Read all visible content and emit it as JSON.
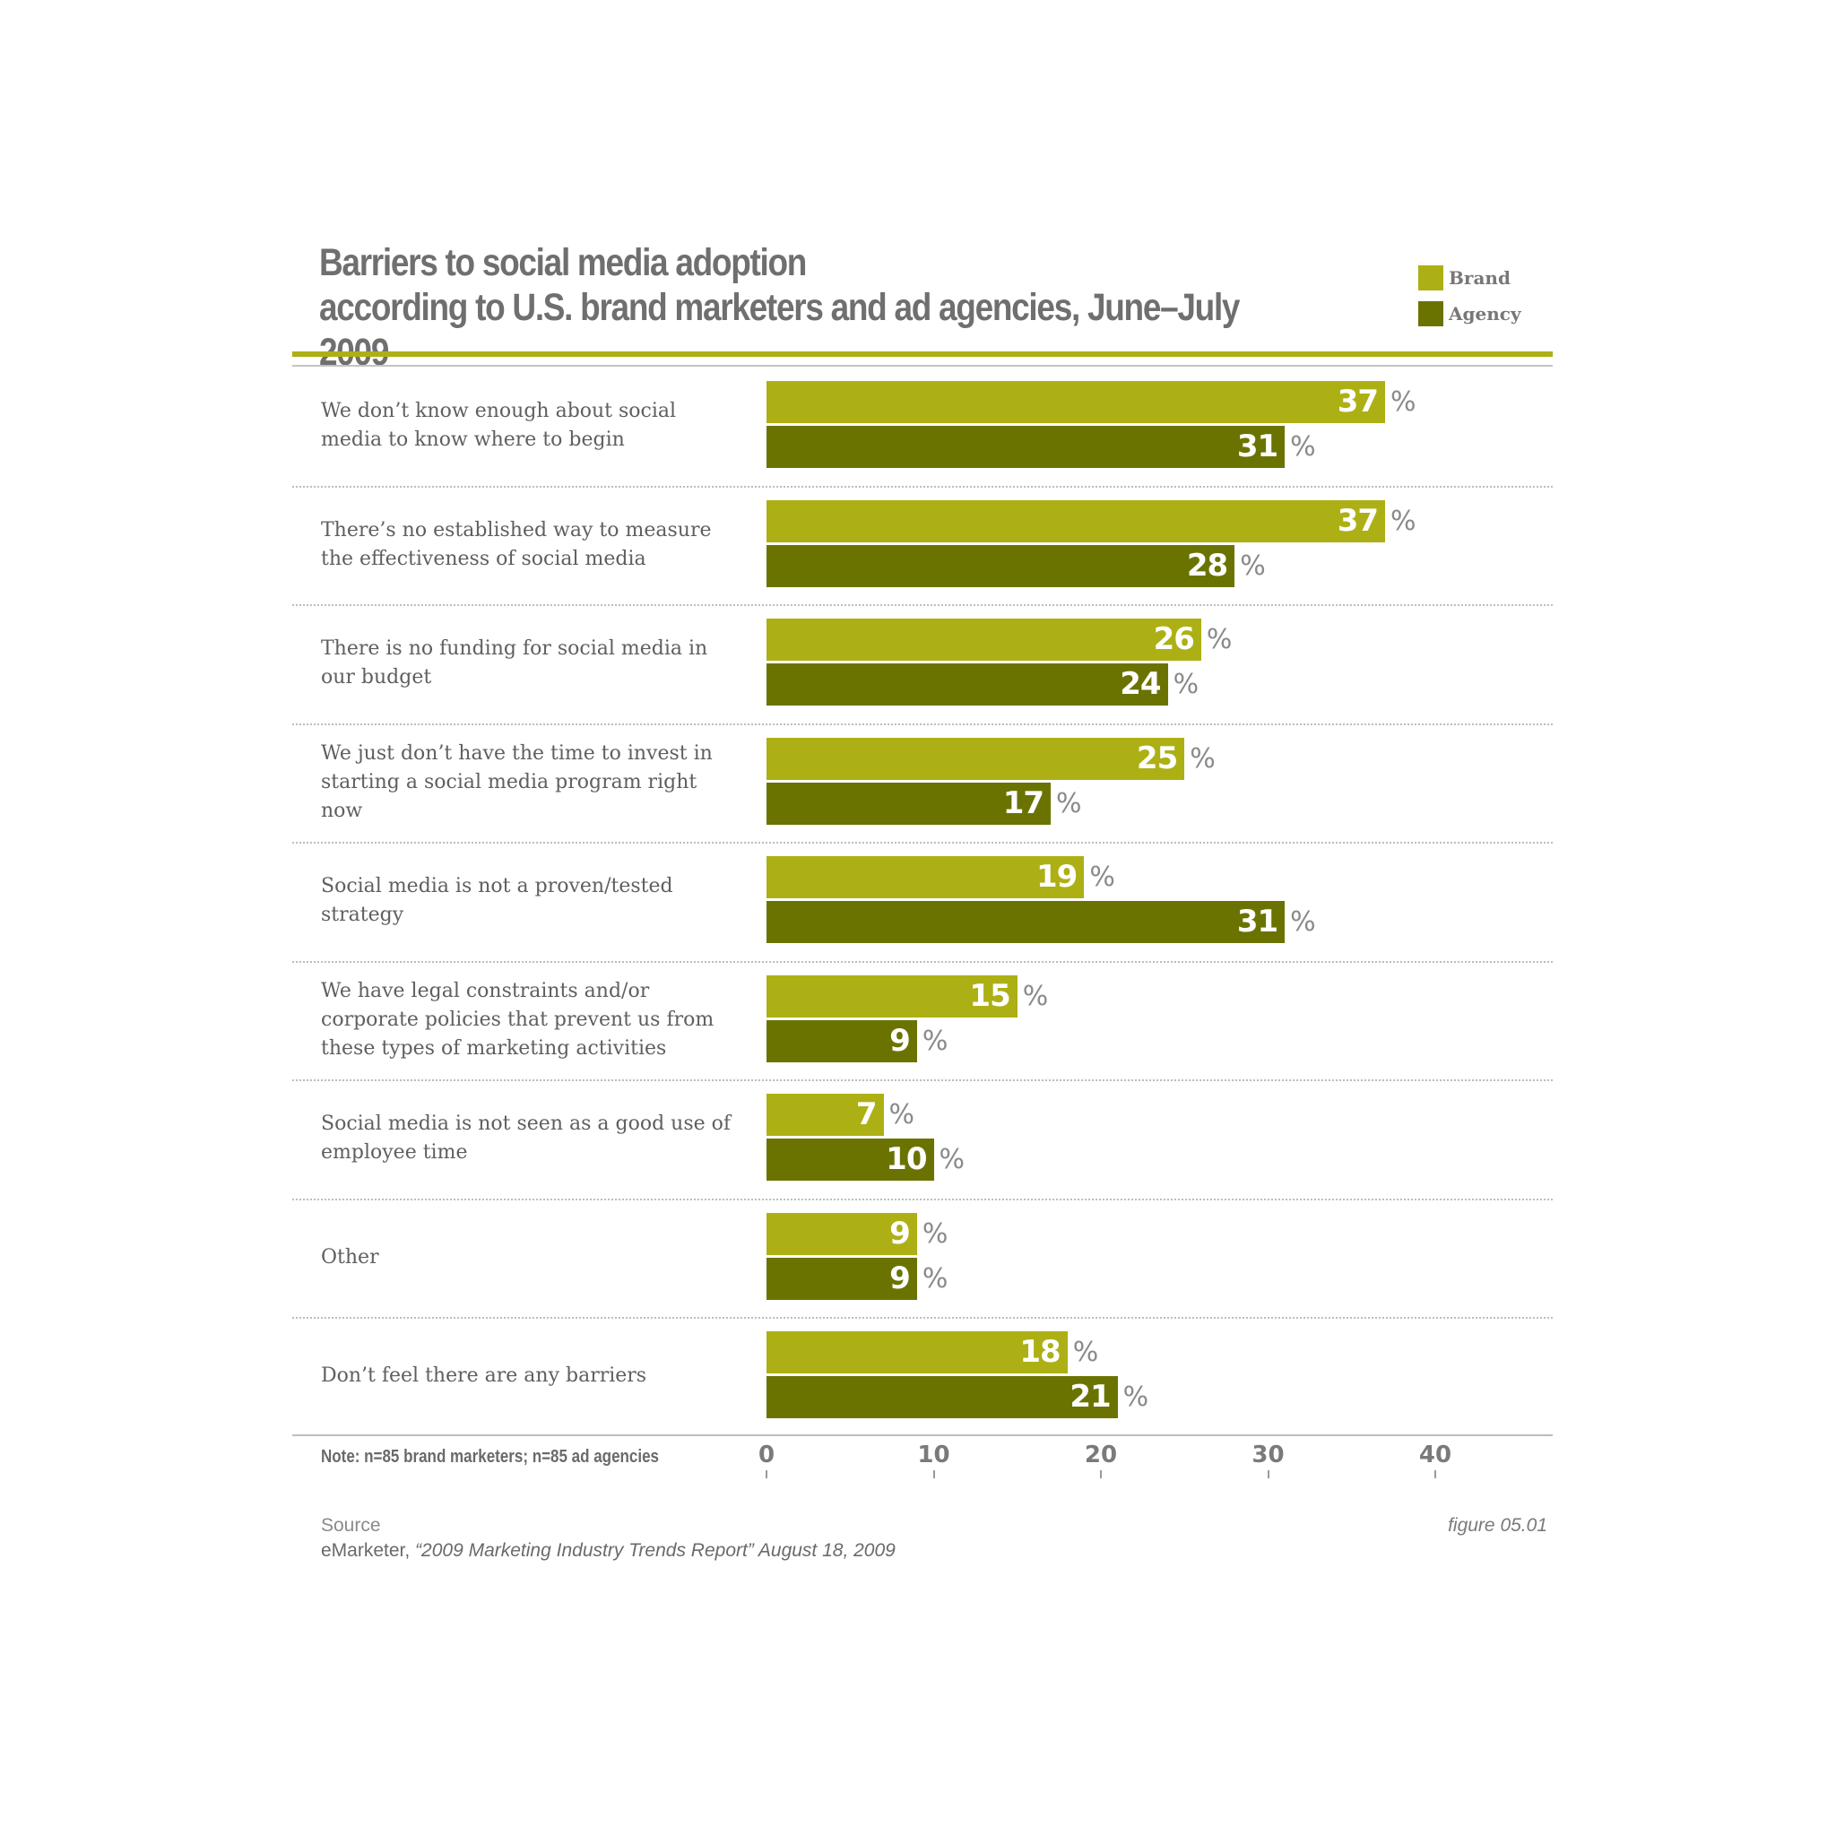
{
  "header": {
    "title_line1": "Barriers to social media adoption",
    "title_line2": "according to U.S. brand marketers and ad agencies, June–July 2009"
  },
  "legend": [
    {
      "label": "Brand",
      "color": "#adb014"
    },
    {
      "label": "Agency",
      "color": "#6b7300"
    }
  ],
  "chart_data": {
    "type": "bar",
    "orientation": "horizontal",
    "title": "Barriers to social media adoption according to U.S. brand marketers and ad agencies, June–July 2009",
    "categories": [
      "We don’t know enough about social media to know where to begin",
      "There’s no established way to measure the effectiveness of social media",
      "There is no funding for social media in our budget",
      "We just don’t have the time to invest in starting a social media program right now",
      "Social media is not a proven/tested strategy",
      "We have legal constraints and/or corporate policies that prevent us from these types of marketing activities",
      "Social media is not seen as a good use of employee time",
      "Other",
      "Don’t feel there are any barriers"
    ],
    "series": [
      {
        "name": "Brand",
        "color": "#adb014",
        "values": [
          37,
          37,
          26,
          25,
          19,
          15,
          7,
          9,
          18
        ]
      },
      {
        "name": "Agency",
        "color": "#6b7300",
        "values": [
          31,
          28,
          24,
          17,
          31,
          9,
          10,
          9,
          21
        ]
      }
    ],
    "unit_symbol": "%",
    "xlim": [
      0,
      47
    ],
    "x_ticks": [
      0,
      10,
      20,
      30,
      40
    ],
    "grid": false,
    "legend_position": "top-right"
  },
  "footer": {
    "note": "Note: n=85 brand marketers; n=85 ad agencies",
    "source_heading": "Source",
    "source_publisher": "eMarketer, ",
    "source_title": "“2009 Marketing Industry Trends Report” August 18, 2009",
    "figure_label": "figure 05.01"
  },
  "colors": {
    "accent_rule": "#adb014"
  }
}
